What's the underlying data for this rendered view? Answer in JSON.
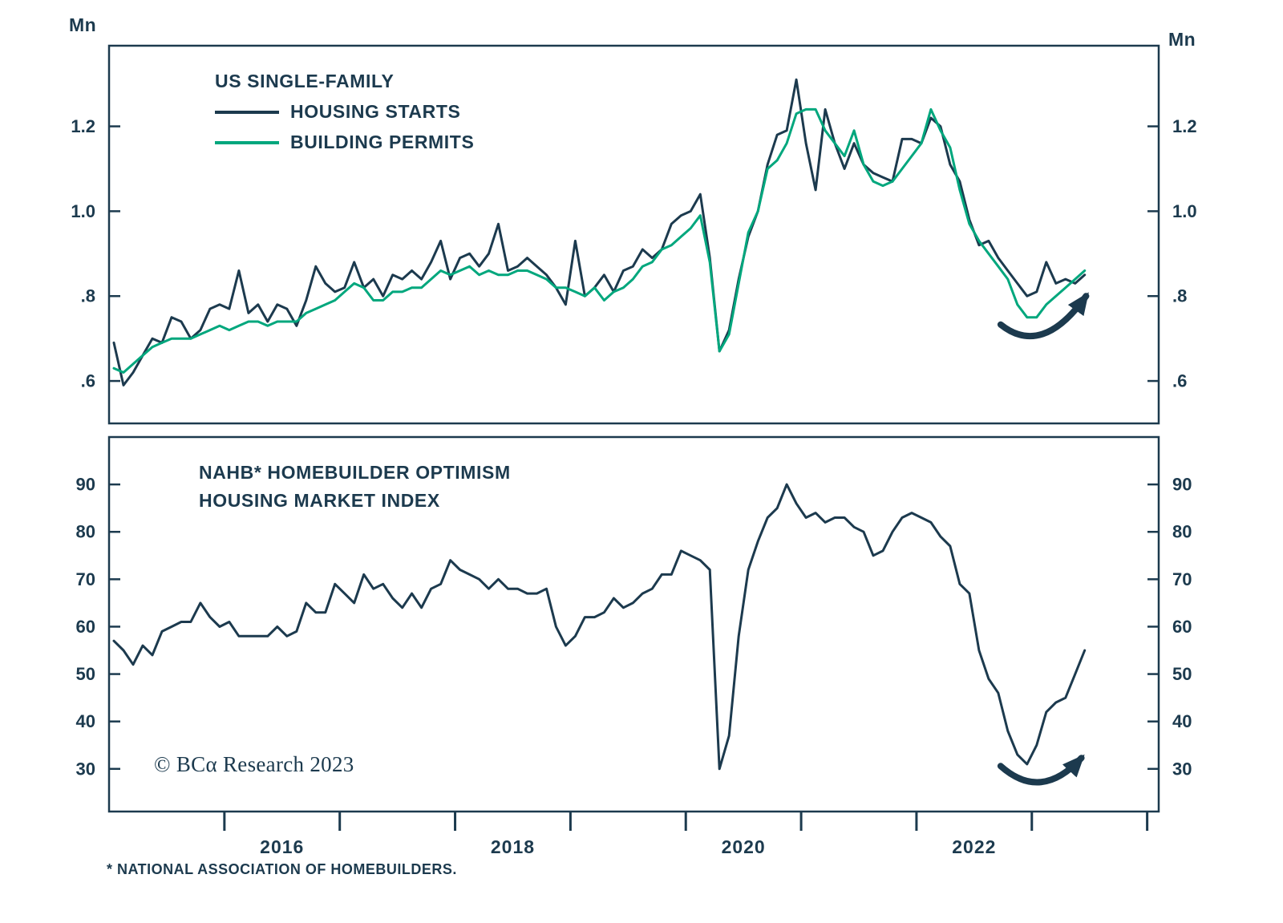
{
  "colors": {
    "axis": "#1c3a4e",
    "text": "#1c3a4e",
    "navy": "#1c3a4e",
    "green": "#00a77d",
    "background": "#ffffff"
  },
  "top_panel": {
    "unit": "Mn",
    "legend_title": "US SINGLE-FAMILY"
  },
  "bottom_panel": {
    "title_line1": "NAHB* HOMEBUILDER OPTIMISM",
    "title_line2": "HOUSING MARKET INDEX"
  },
  "copyright": "© BCα Research 2023",
  "footnote": "* NATIONAL ASSOCIATION OF HOMEBUILDERS.",
  "chart_data": [
    {
      "type": "line",
      "title": "US Single-Family Housing Starts and Building Permits",
      "unit": "Mn",
      "frequency": "monthly",
      "x_monthly_from": "2015-01",
      "x_monthly_to": "2023-06",
      "x_domain": [
        2015.0,
        2024.1
      ],
      "x_start": 2015.042,
      "x_step": 0.083333,
      "ylim": [
        0.5,
        1.39
      ],
      "yticks": [
        {
          "v": 0.6,
          "label": ".6"
        },
        {
          "v": 0.8,
          "label": ".8"
        },
        {
          "v": 1.0,
          "label": "1.0"
        },
        {
          "v": 1.2,
          "label": "1.2"
        }
      ],
      "series": [
        {
          "name": "HOUSING STARTS",
          "color": "#1c3a4e",
          "values": [
            0.69,
            0.59,
            0.62,
            0.66,
            0.7,
            0.69,
            0.75,
            0.74,
            0.7,
            0.72,
            0.77,
            0.78,
            0.77,
            0.86,
            0.76,
            0.78,
            0.74,
            0.78,
            0.77,
            0.73,
            0.79,
            0.87,
            0.83,
            0.81,
            0.82,
            0.88,
            0.82,
            0.84,
            0.8,
            0.85,
            0.84,
            0.86,
            0.84,
            0.88,
            0.93,
            0.84,
            0.89,
            0.9,
            0.87,
            0.9,
            0.97,
            0.86,
            0.87,
            0.89,
            0.87,
            0.85,
            0.82,
            0.78,
            0.93,
            0.8,
            0.82,
            0.85,
            0.81,
            0.86,
            0.87,
            0.91,
            0.89,
            0.91,
            0.97,
            0.99,
            1.0,
            1.04,
            0.89,
            0.67,
            0.72,
            0.84,
            0.94,
            1.0,
            1.11,
            1.18,
            1.19,
            1.31,
            1.16,
            1.05,
            1.24,
            1.16,
            1.1,
            1.16,
            1.11,
            1.09,
            1.08,
            1.07,
            1.17,
            1.17,
            1.16,
            1.22,
            1.2,
            1.11,
            1.07,
            0.98,
            0.92,
            0.93,
            0.89,
            0.86,
            0.83,
            0.8,
            0.81,
            0.88,
            0.83,
            0.84,
            0.83,
            0.85
          ]
        },
        {
          "name": "BUILDING PERMITS",
          "color": "#00a77d",
          "values": [
            0.63,
            0.62,
            0.64,
            0.66,
            0.68,
            0.69,
            0.7,
            0.7,
            0.7,
            0.71,
            0.72,
            0.73,
            0.72,
            0.73,
            0.74,
            0.74,
            0.73,
            0.74,
            0.74,
            0.74,
            0.76,
            0.77,
            0.78,
            0.79,
            0.81,
            0.83,
            0.82,
            0.79,
            0.79,
            0.81,
            0.81,
            0.82,
            0.82,
            0.84,
            0.86,
            0.85,
            0.86,
            0.87,
            0.85,
            0.86,
            0.85,
            0.85,
            0.86,
            0.86,
            0.85,
            0.84,
            0.82,
            0.82,
            0.81,
            0.8,
            0.82,
            0.79,
            0.81,
            0.82,
            0.84,
            0.87,
            0.88,
            0.91,
            0.92,
            0.94,
            0.96,
            0.99,
            0.88,
            0.67,
            0.71,
            0.83,
            0.95,
            1.0,
            1.1,
            1.12,
            1.16,
            1.23,
            1.24,
            1.24,
            1.19,
            1.16,
            1.13,
            1.19,
            1.11,
            1.07,
            1.06,
            1.07,
            1.1,
            1.13,
            1.16,
            1.24,
            1.19,
            1.15,
            1.05,
            0.97,
            0.93,
            0.9,
            0.87,
            0.84,
            0.78,
            0.75,
            0.75,
            0.78,
            0.8,
            0.82,
            0.84,
            0.86
          ]
        }
      ],
      "annotation_arrow": {
        "points": [
          [
            2022.73,
            0.733
          ],
          [
            2023.09,
            0.655
          ],
          [
            2023.47,
            0.8
          ]
        ]
      }
    },
    {
      "type": "line",
      "title": "NAHB Homebuilder Optimism Housing Market Index",
      "unit": "index",
      "frequency": "monthly",
      "x_monthly_from": "2015-01",
      "x_monthly_to": "2023-06",
      "x_domain": [
        2015.0,
        2024.1
      ],
      "x_start": 2015.042,
      "x_step": 0.083333,
      "ylim": [
        21,
        100
      ],
      "yticks": [
        {
          "v": 30,
          "label": "30"
        },
        {
          "v": 40,
          "label": "40"
        },
        {
          "v": 50,
          "label": "50"
        },
        {
          "v": 60,
          "label": "60"
        },
        {
          "v": 70,
          "label": "70"
        },
        {
          "v": 80,
          "label": "80"
        },
        {
          "v": 90,
          "label": "90"
        }
      ],
      "xticks": [
        2016,
        2017,
        2018,
        2019,
        2020,
        2021,
        2022,
        2023,
        2024
      ],
      "xlabels": [
        {
          "x": 2016.5,
          "text": "2016"
        },
        {
          "x": 2018.5,
          "text": "2018"
        },
        {
          "x": 2020.5,
          "text": "2020"
        },
        {
          "x": 2022.5,
          "text": "2022"
        }
      ],
      "series": [
        {
          "name": "NAHB HOUSING MARKET INDEX",
          "color": "#1c3a4e",
          "values": [
            57,
            55,
            52,
            56,
            54,
            59,
            60,
            61,
            61,
            65,
            62,
            60,
            61,
            58,
            58,
            58,
            58,
            60,
            58,
            59,
            65,
            63,
            63,
            69,
            67,
            65,
            71,
            68,
            69,
            66,
            64,
            67,
            64,
            68,
            69,
            74,
            72,
            71,
            70,
            68,
            70,
            68,
            68,
            67,
            67,
            68,
            60,
            56,
            58,
            62,
            62,
            63,
            66,
            64,
            65,
            67,
            68,
            71,
            71,
            76,
            75,
            74,
            72,
            30,
            37,
            58,
            72,
            78,
            83,
            85,
            90,
            86,
            83,
            84,
            82,
            83,
            83,
            81,
            80,
            75,
            76,
            80,
            83,
            84,
            83,
            82,
            79,
            77,
            69,
            67,
            55,
            49,
            46,
            38,
            33,
            31,
            35,
            42,
            44,
            45,
            50,
            55
          ]
        }
      ],
      "annotation_arrow": {
        "points": [
          [
            2022.73,
            30.6
          ],
          [
            2023.08,
            23.0
          ],
          [
            2023.43,
            32.3
          ]
        ]
      }
    }
  ]
}
